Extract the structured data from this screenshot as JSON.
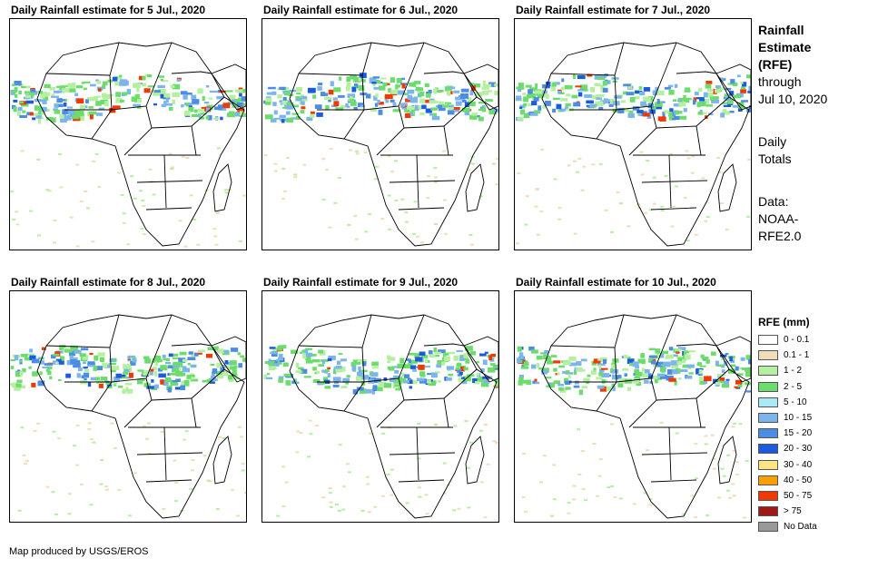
{
  "panels": [
    {
      "title": "Daily Rainfall estimate for 5 Jul., 2020"
    },
    {
      "title": "Daily Rainfall estimate for 6 Jul., 2020"
    },
    {
      "title": "Daily Rainfall estimate for 7 Jul., 2020"
    },
    {
      "title": "Daily Rainfall estimate for 8 Jul., 2020"
    },
    {
      "title": "Daily Rainfall estimate for 9 Jul., 2020"
    },
    {
      "title": "Daily Rainfall estimate for 10 Jul., 2020"
    }
  ],
  "sidebar": {
    "title_lines": [
      "Rainfall",
      "Estimate",
      "(RFE)"
    ],
    "through": "through",
    "date": "Jul 10, 2020",
    "totals_lines": [
      "Daily",
      "Totals"
    ],
    "data_lines": [
      "Data:",
      "NOAA-",
      "RFE2.0"
    ]
  },
  "legend": {
    "title": "RFE (mm)",
    "items": [
      {
        "label": "0 - 0.1",
        "color": "#ffffff"
      },
      {
        "label": "0.1 - 1",
        "color": "#f0dcb8"
      },
      {
        "label": "1 - 2",
        "color": "#b4f0a0"
      },
      {
        "label": "2 - 5",
        "color": "#6cdc6c"
      },
      {
        "label": "5 - 10",
        "color": "#aaeaf4"
      },
      {
        "label": "10 - 15",
        "color": "#7cb4ec"
      },
      {
        "label": "15 - 20",
        "color": "#4c8ce4"
      },
      {
        "label": "20 - 30",
        "color": "#1c5cdc"
      },
      {
        "label": "30 - 40",
        "color": "#fce484"
      },
      {
        "label": "40 - 50",
        "color": "#f8a000"
      },
      {
        "label": "50 - 75",
        "color": "#f03800"
      },
      {
        "label": "> 75",
        "color": "#a01818"
      },
      {
        "label": "No Data",
        "color": "#999999"
      }
    ]
  },
  "footer": "Map produced by USGS/EROS"
}
